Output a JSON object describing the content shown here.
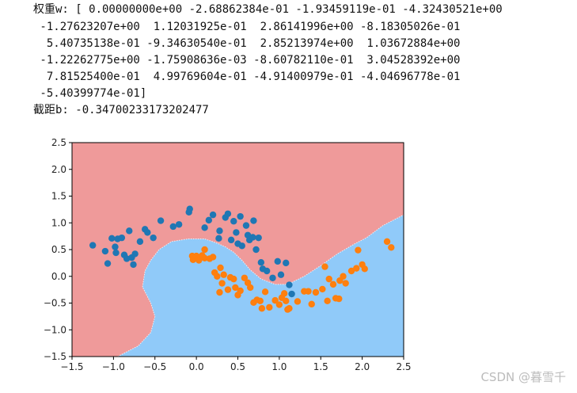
{
  "console": {
    "lines": [
      "权重w: [ 0.00000000e+00 -2.68862384e-01 -1.93459119e-01 -4.32430521e+00",
      " -1.27623207e+00  1.12031925e-01  2.86141996e+00 -8.18305026e-01",
      "  5.40735138e-01 -9.34630540e-01  2.85213974e+00  1.03672884e+00",
      " -1.22262775e+00 -1.75908636e-03 -8.60782110e-01  3.04528392e+00",
      "  7.81525400e-01  4.99769604e-01 -4.91400979e-01 -4.04696778e-01",
      " -5.40399774e-01]",
      "截距b: -0.34700233173202477"
    ]
  },
  "watermark": "CSDN @暮雪千",
  "chart_data": {
    "type": "scatter",
    "title": "",
    "xlabel": "",
    "ylabel": "",
    "xlim": [
      -1.5,
      2.5
    ],
    "ylim": [
      -1.5,
      2.5
    ],
    "xticks": [
      "−1.5",
      "−1.0",
      "−0.5",
      "0.0",
      "0.5",
      "1.0",
      "1.5",
      "2.0",
      "2.5"
    ],
    "yticks": [
      "−1.5",
      "−1.0",
      "−0.5",
      "0.0",
      "0.5",
      "1.0",
      "1.5",
      "2.0",
      "2.5"
    ],
    "grid": false,
    "background": {
      "type": "decision-regions",
      "class0_color": "#ef9a9a",
      "class1_color": "#90caf9",
      "boundary": [
        [
          -0.95,
          -1.5
        ],
        [
          -0.7,
          -1.3
        ],
        [
          -0.55,
          -1.05
        ],
        [
          -0.5,
          -0.75
        ],
        [
          -0.55,
          -0.5
        ],
        [
          -0.65,
          -0.2
        ],
        [
          -0.62,
          0.1
        ],
        [
          -0.55,
          0.3
        ],
        [
          -0.45,
          0.5
        ],
        [
          -0.3,
          0.65
        ],
        [
          -0.1,
          0.7
        ],
        [
          0.1,
          0.7
        ],
        [
          0.25,
          0.62
        ],
        [
          0.35,
          0.55
        ],
        [
          0.45,
          0.45
        ],
        [
          0.55,
          0.3
        ],
        [
          0.65,
          0.12
        ],
        [
          0.78,
          -0.05
        ],
        [
          0.95,
          -0.15
        ],
        [
          1.1,
          -0.15
        ],
        [
          1.3,
          0.0
        ],
        [
          1.5,
          0.2
        ],
        [
          1.7,
          0.42
        ],
        [
          1.9,
          0.6
        ],
        [
          2.05,
          0.72
        ],
        [
          2.25,
          0.95
        ],
        [
          2.5,
          1.15
        ]
      ]
    },
    "series": [
      {
        "color": "#1f77b4",
        "points": [
          [
            -1.25,
            0.58
          ],
          [
            -1.1,
            0.47
          ],
          [
            -1.07,
            0.24
          ],
          [
            -1.02,
            0.71
          ],
          [
            -0.98,
            0.55
          ],
          [
            -0.97,
            0.44
          ],
          [
            -0.95,
            0.7
          ],
          [
            -0.9,
            0.72
          ],
          [
            -0.87,
            0.4
          ],
          [
            -0.84,
            0.33
          ],
          [
            -0.81,
            0.85
          ],
          [
            -0.78,
            0.35
          ],
          [
            -0.76,
            0.22
          ],
          [
            -0.74,
            0.42
          ],
          [
            -0.68,
            0.65
          ],
          [
            -0.62,
            0.88
          ],
          [
            -0.59,
            0.82
          ],
          [
            -0.52,
            0.72
          ],
          [
            -0.43,
            1.04
          ],
          [
            -0.28,
            0.93
          ],
          [
            -0.21,
            0.97
          ],
          [
            -0.09,
            1.2
          ],
          [
            -0.08,
            1.26
          ],
          [
            0.1,
            0.91
          ],
          [
            0.15,
            1.05
          ],
          [
            0.2,
            1.15
          ],
          [
            0.27,
            0.71
          ],
          [
            0.28,
            0.85
          ],
          [
            0.35,
            1.1
          ],
          [
            0.38,
            1.17
          ],
          [
            0.42,
            0.68
          ],
          [
            0.45,
            1.03
          ],
          [
            0.48,
            0.82
          ],
          [
            0.5,
            0.61
          ],
          [
            0.53,
            1.12
          ],
          [
            0.55,
            0.57
          ],
          [
            0.6,
            0.95
          ],
          [
            0.62,
            0.77
          ],
          [
            0.64,
            0.68
          ],
          [
            0.68,
            0.73
          ],
          [
            0.69,
            1.04
          ],
          [
            0.72,
            0.5
          ],
          [
            0.75,
            0.72
          ],
          [
            0.78,
            0.26
          ],
          [
            0.8,
            0.14
          ],
          [
            0.85,
            0.1
          ],
          [
            0.92,
            -0.03
          ],
          [
            0.98,
            0.28
          ],
          [
            1.02,
            0.03
          ],
          [
            1.08,
            0.25
          ],
          [
            1.12,
            -0.16
          ],
          [
            1.15,
            -0.33
          ]
        ]
      },
      {
        "color": "#ff7f0e",
        "points": [
          [
            -0.05,
            0.38
          ],
          [
            -0.04,
            0.31
          ],
          [
            0.0,
            0.38
          ],
          [
            0.03,
            0.3
          ],
          [
            0.07,
            0.39
          ],
          [
            0.1,
            0.34
          ],
          [
            0.1,
            0.5
          ],
          [
            0.16,
            0.33
          ],
          [
            0.2,
            0.36
          ],
          [
            0.22,
            0.07
          ],
          [
            0.25,
            0.0
          ],
          [
            0.28,
            -0.3
          ],
          [
            0.29,
            0.16
          ],
          [
            0.31,
            -0.13
          ],
          [
            0.33,
            0.03
          ],
          [
            0.38,
            -0.25
          ],
          [
            0.41,
            -0.02
          ],
          [
            0.45,
            -0.05
          ],
          [
            0.47,
            -0.21
          ],
          [
            0.5,
            -0.35
          ],
          [
            0.53,
            -0.27
          ],
          [
            0.58,
            -0.03
          ],
          [
            0.62,
            -0.12
          ],
          [
            0.65,
            -0.21
          ],
          [
            0.69,
            -0.49
          ],
          [
            0.73,
            -0.44
          ],
          [
            0.77,
            -0.46
          ],
          [
            0.79,
            -0.6
          ],
          [
            0.83,
            -0.29
          ],
          [
            0.88,
            -0.58
          ],
          [
            0.95,
            -0.45
          ],
          [
            1.0,
            -0.53
          ],
          [
            1.03,
            -0.4
          ],
          [
            1.06,
            -0.32
          ],
          [
            1.08,
            -0.46
          ],
          [
            1.1,
            -0.62
          ],
          [
            1.12,
            -0.6
          ],
          [
            1.22,
            -0.47
          ],
          [
            1.3,
            -0.28
          ],
          [
            1.35,
            -0.28
          ],
          [
            1.39,
            -0.52
          ],
          [
            1.44,
            -0.3
          ],
          [
            1.52,
            -0.24
          ],
          [
            1.55,
            0.18
          ],
          [
            1.58,
            -0.46
          ],
          [
            1.6,
            -0.05
          ],
          [
            1.65,
            -0.15
          ],
          [
            1.68,
            -0.41
          ],
          [
            1.72,
            -0.42
          ],
          [
            1.73,
            -0.08
          ],
          [
            1.77,
            -0.0
          ],
          [
            1.8,
            -0.13
          ],
          [
            1.87,
            0.1
          ],
          [
            1.93,
            0.15
          ],
          [
            1.95,
            0.49
          ],
          [
            2.0,
            0.22
          ],
          [
            2.03,
            0.14
          ],
          [
            2.3,
            0.65
          ],
          [
            2.35,
            0.54
          ]
        ]
      }
    ]
  }
}
